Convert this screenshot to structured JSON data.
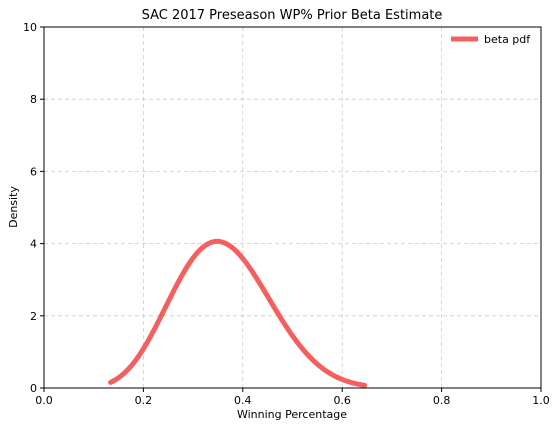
{
  "chart_data": {
    "type": "line",
    "title": "SAC 2017 Preseason WP% Prior Beta Estimate",
    "xlabel": "Winning Percentage",
    "ylabel": "Density",
    "xlim": [
      0,
      1.0
    ],
    "ylim": [
      0,
      10
    ],
    "xticks": [
      0.0,
      0.2,
      0.4,
      0.6,
      0.8,
      1.0
    ],
    "xtick_labels": [
      "0.0",
      "0.2",
      "0.4",
      "0.6",
      "0.8",
      "1.0"
    ],
    "yticks": [
      0,
      2,
      4,
      6,
      8,
      10
    ],
    "ytick_labels": [
      "0",
      "2",
      "4",
      "6",
      "8",
      "10"
    ],
    "grid": true,
    "legend_position": "top-right",
    "series": [
      {
        "name": "beta pdf",
        "color": "#f46060",
        "distribution": "beta",
        "alpha": 8.7,
        "beta": 15.4,
        "x_range": [
          0.134,
          0.645
        ]
      }
    ]
  }
}
